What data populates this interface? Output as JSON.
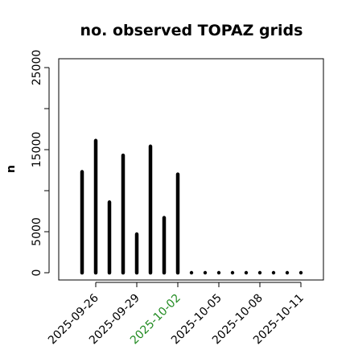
{
  "chart_data": {
    "type": "bar",
    "title": "no. observed TOPAZ grids",
    "ylabel": "n",
    "xlabel": "",
    "ylim": [
      0,
      26000
    ],
    "yticks": [
      0,
      5000,
      10000,
      15000,
      20000,
      25000
    ],
    "ytick_labels": [
      "0",
      "5000",
      "",
      "15000",
      "",
      "25000"
    ],
    "x": [
      "2025-09-25",
      "2025-09-26",
      "2025-09-27",
      "2025-09-28",
      "2025-09-29",
      "2025-09-30",
      "2025-10-01",
      "2025-10-02",
      "2025-10-03",
      "2025-10-04",
      "2025-10-05",
      "2025-10-06",
      "2025-10-07",
      "2025-10-08",
      "2025-10-09",
      "2025-10-10",
      "2025-10-11"
    ],
    "values": [
      12300,
      16100,
      8600,
      14300,
      4700,
      15400,
      6700,
      12000,
      0,
      0,
      0,
      0,
      0,
      0,
      0,
      0,
      0
    ],
    "xtick_labels": [
      {
        "date": "2025-09-26",
        "label": "2025-09-26",
        "color": "#000000"
      },
      {
        "date": "2025-09-29",
        "label": "2025-09-29",
        "color": "#000000"
      },
      {
        "date": "2025-10-02",
        "label": "2025-10-02",
        "color": "#228B22"
      },
      {
        "date": "2025-10-05",
        "label": "2025-10-05",
        "color": "#000000"
      },
      {
        "date": "2025-10-08",
        "label": "2025-10-08",
        "color": "#000000"
      },
      {
        "date": "2025-10-11",
        "label": "2025-10-11",
        "color": "#000000"
      }
    ],
    "grid": false
  }
}
